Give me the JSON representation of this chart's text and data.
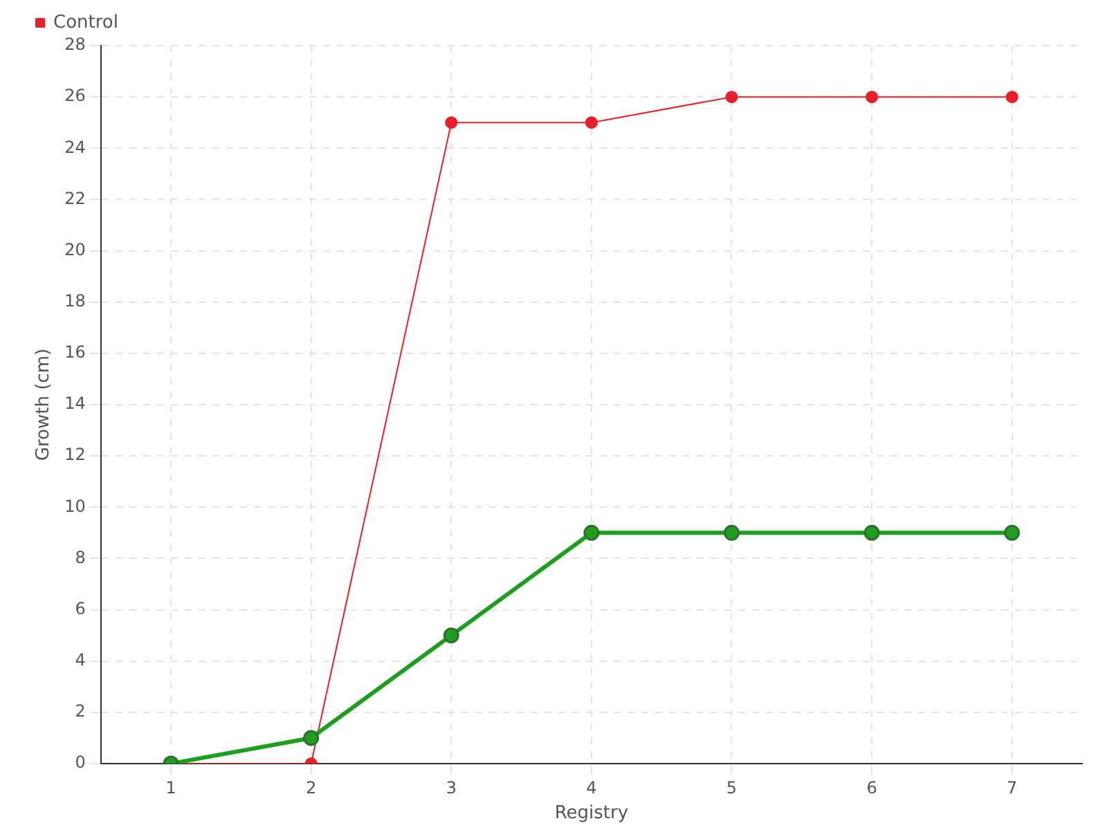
{
  "chart_data": {
    "type": "line",
    "xlabel": "Registry",
    "ylabel": "Growth (cm)",
    "categories": [
      "1",
      "2",
      "3",
      "4",
      "5",
      "6",
      "7"
    ],
    "series": [
      {
        "color": "#1e9e1e",
        "values": [
          0,
          1,
          5,
          9,
          9,
          9,
          9
        ]
      },
      {
        "name": "Control",
        "color": "#e8202a",
        "values": [
          0,
          0,
          25,
          25,
          26,
          26,
          26
        ]
      }
    ],
    "ylim": [
      0,
      28
    ],
    "yticks": [
      0,
      2,
      4,
      6,
      8,
      10,
      12,
      14,
      16,
      18,
      20,
      22,
      24,
      26,
      28
    ],
    "grid": true,
    "legend": "top left",
    "marker": "circle",
    "line_style": "solid"
  }
}
